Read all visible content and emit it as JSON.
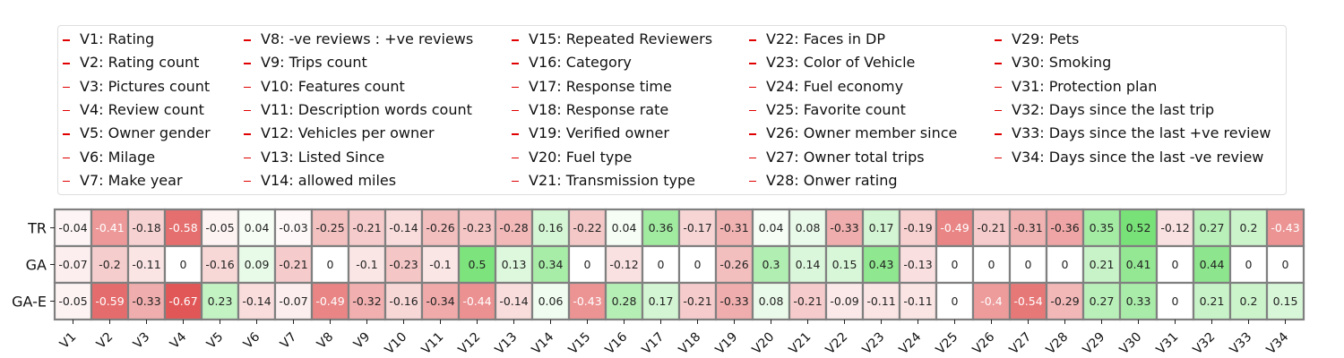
{
  "legend": {
    "marker_color": "#e00000",
    "columns": [
      [
        "V1: Rating",
        "V2: Rating count",
        "V3: Pictures count",
        "V4: Review count",
        "V5: Owner gender",
        "V6: Milage",
        "V7: Make year"
      ],
      [
        "V8: -ve reviews : +ve reviews",
        "V9: Trips count",
        "V10: Features count",
        "V11: Description words count",
        "V12: Vehicles per owner",
        "V13: Listed Since",
        "V14: allowed miles"
      ],
      [
        "V15: Repeated Reviewers",
        "V16: Category",
        "V17: Response time",
        "V18: Response rate",
        "V19: Verified owner",
        "V20: Fuel type",
        "V21: Transmission type"
      ],
      [
        "V22: Faces in DP",
        "V23: Color of Vehicle",
        "V24: Fuel economy",
        "V25: Favorite count",
        "V26: Owner member since",
        "V27: Owner total trips",
        "V28: Onwer rating"
      ],
      [
        "V29: Pets",
        "V30: Smoking",
        "V31: Protection plan",
        "V32: Days since the last trip",
        "V33: Days since the last +ve review",
        "V34: Days since the last -ve review"
      ]
    ]
  },
  "chart_data": {
    "type": "heatmap",
    "x_categories": [
      "V1",
      "V2",
      "V3",
      "V4",
      "V5",
      "V6",
      "V7",
      "V8",
      "V9",
      "V10",
      "V11",
      "V12",
      "V13",
      "V14",
      "V15",
      "V16",
      "V17",
      "V18",
      "V19",
      "V20",
      "V21",
      "V22",
      "V23",
      "V24",
      "V25",
      "V26",
      "V27",
      "V28",
      "V29",
      "V30",
      "V31",
      "V32",
      "V33",
      "V34"
    ],
    "y_categories": [
      "TR",
      "GA",
      "GA-E"
    ],
    "values": [
      [
        -0.04,
        -0.41,
        -0.18,
        -0.58,
        -0.05,
        0.04,
        -0.03,
        -0.25,
        -0.21,
        -0.14,
        -0.26,
        -0.23,
        -0.28,
        0.16,
        -0.22,
        0.04,
        0.36,
        -0.17,
        -0.31,
        0.04,
        0.08,
        -0.33,
        0.17,
        -0.19,
        -0.49,
        -0.21,
        -0.31,
        -0.36,
        0.35,
        0.52,
        -0.12,
        0.27,
        0.2,
        -0.43
      ],
      [
        -0.07,
        -0.2,
        -0.11,
        0,
        -0.16,
        0.09,
        -0.21,
        0,
        -0.1,
        -0.23,
        -0.1,
        0.5,
        0.13,
        0.34,
        0,
        -0.12,
        0,
        0,
        -0.26,
        0.3,
        0.14,
        0.15,
        0.43,
        -0.13,
        0,
        0,
        0,
        0,
        0.21,
        0.41,
        0,
        0.44,
        0,
        0
      ],
      [
        -0.05,
        -0.59,
        -0.33,
        -0.67,
        0.23,
        -0.14,
        -0.07,
        -0.49,
        -0.32,
        -0.16,
        -0.34,
        -0.44,
        -0.14,
        0.06,
        -0.43,
        0.28,
        0.17,
        -0.21,
        -0.33,
        0.08,
        -0.21,
        -0.09,
        -0.11,
        -0.11,
        0,
        -0.4,
        -0.54,
        -0.29,
        0.27,
        0.33,
        0,
        0.21,
        0.2,
        0.15
      ]
    ],
    "colors": {
      "negative": "#e05050",
      "neutral": "#ffffff",
      "positive": "#70e070",
      "grid": "#808080"
    },
    "value_range": [
      -0.7,
      0.55
    ]
  }
}
